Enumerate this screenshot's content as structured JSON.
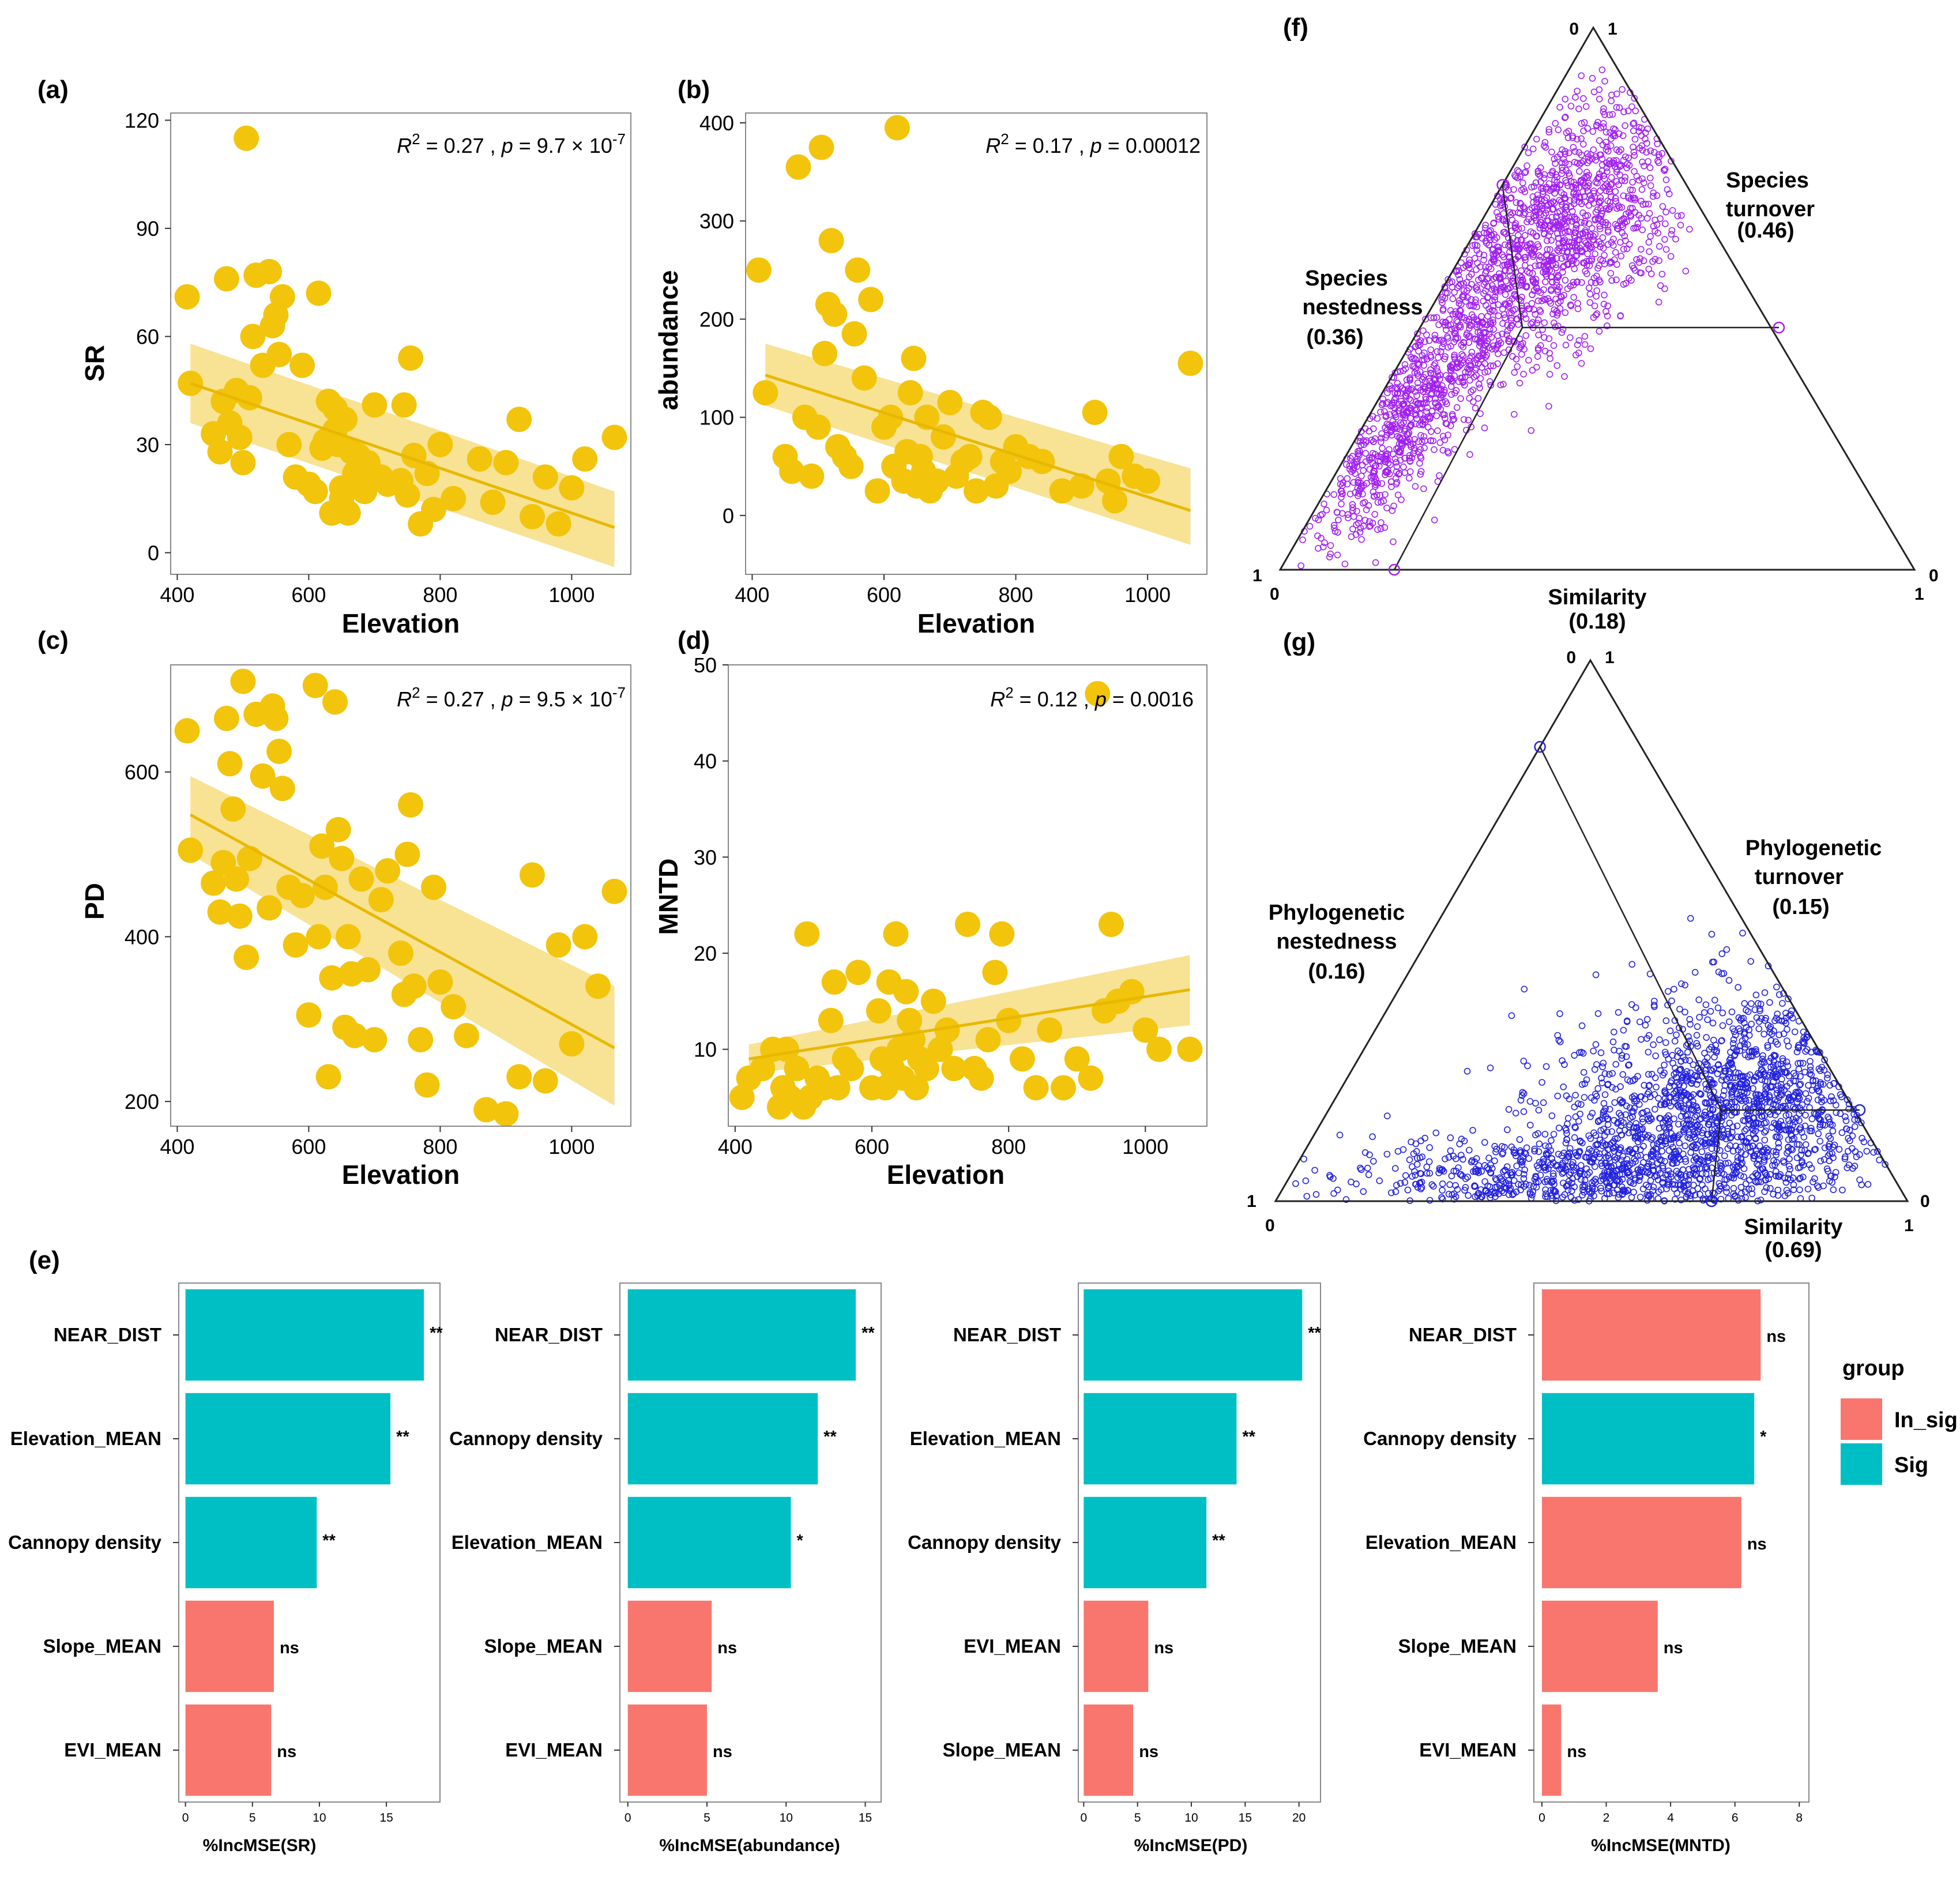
{
  "colors": {
    "point": "#F2C40C",
    "ribbon": "#F5D35A",
    "line": "#E8B800",
    "sig": "#00BFC4",
    "insig": "#F8766D",
    "species_tern": "#A020F0",
    "phylo_tern": "#2222DD"
  },
  "legend": {
    "title": "group",
    "items": [
      "In_sig",
      "Sig"
    ]
  },
  "chart_data": [
    {
      "id": "a",
      "type": "scatter",
      "label": "(a)",
      "xlabel": "Elevation",
      "ylabel": "SR",
      "xlim": [
        390,
        1090
      ],
      "ylim": [
        -6,
        122
      ],
      "xticks": [
        400,
        600,
        800,
        1000
      ],
      "yticks": [
        0,
        30,
        60,
        90,
        120
      ],
      "stat_parts": {
        "r2": "R",
        "sup": "2",
        "eq1": " = 0.27 , ",
        "p": "p",
        "eq2": " = 9.7 × 10",
        "exp": "-7"
      },
      "fit": {
        "x": [
          420,
          1065
        ],
        "y": [
          47,
          7
        ],
        "lower": [
          36,
          -4
        ],
        "upper": [
          58,
          17
        ]
      },
      "x": [
        415,
        420,
        455,
        465,
        470,
        475,
        480,
        490,
        495,
        500,
        505,
        510,
        515,
        520,
        530,
        540,
        545,
        550,
        555,
        560,
        570,
        580,
        590,
        600,
        610,
        615,
        620,
        625,
        630,
        635,
        640,
        640,
        645,
        650,
        650,
        655,
        660,
        665,
        670,
        675,
        680,
        685,
        690,
        700,
        710,
        720,
        740,
        745,
        750,
        755,
        760,
        770,
        780,
        790,
        800,
        820,
        860,
        880,
        900,
        920,
        940,
        960,
        980,
        1000,
        1020,
        1065
      ],
      "y": [
        71,
        47,
        33,
        28,
        42,
        76,
        36,
        45,
        32,
        25,
        115,
        43,
        60,
        77,
        52,
        78,
        63,
        66,
        55,
        71,
        30,
        21,
        52,
        19,
        17,
        72,
        29,
        31,
        42,
        11,
        40,
        34,
        30,
        18,
        15,
        37,
        11,
        28,
        22,
        27,
        22,
        17,
        25,
        41,
        21,
        19,
        20,
        41,
        16,
        54,
        27,
        8,
        22,
        12,
        30,
        15,
        26,
        14,
        25,
        37,
        10,
        21,
        8,
        18,
        26,
        32
      ]
    },
    {
      "id": "b",
      "type": "scatter",
      "label": "(b)",
      "xlabel": "Elevation",
      "ylabel": "abundance",
      "xlim": [
        390,
        1090
      ],
      "ylim": [
        -60,
        410
      ],
      "xticks": [
        400,
        600,
        800,
        1000
      ],
      "yticks": [
        0,
        100,
        200,
        300,
        400
      ],
      "stat_parts": {
        "r2": "R",
        "sup": "2",
        "eq1": " = 0.17 , ",
        "p": "p",
        "eq2": " = 0.00012",
        "exp": ""
      },
      "fit": {
        "x": [
          420,
          1065
        ],
        "y": [
          143,
          5
        ],
        "lower": [
          112,
          -30
        ],
        "upper": [
          175,
          48
        ]
      },
      "x": [
        410,
        420,
        450,
        460,
        470,
        480,
        490,
        500,
        505,
        510,
        515,
        520,
        525,
        530,
        540,
        550,
        555,
        560,
        570,
        580,
        590,
        600,
        610,
        615,
        620,
        630,
        635,
        640,
        645,
        650,
        655,
        660,
        665,
        670,
        680,
        690,
        700,
        710,
        720,
        730,
        740,
        750,
        760,
        770,
        780,
        790,
        800,
        820,
        840,
        870,
        900,
        920,
        940,
        950,
        960,
        980,
        1000,
        1065
      ],
      "y": [
        250,
        125,
        60,
        45,
        355,
        100,
        40,
        90,
        375,
        165,
        215,
        280,
        205,
        70,
        60,
        50,
        185,
        250,
        140,
        220,
        25,
        90,
        100,
        50,
        395,
        35,
        65,
        125,
        160,
        30,
        60,
        45,
        100,
        25,
        35,
        80,
        115,
        40,
        55,
        60,
        25,
        105,
        100,
        30,
        55,
        45,
        70,
        60,
        55,
        25,
        30,
        105,
        35,
        15,
        60,
        40,
        35,
        155
      ]
    },
    {
      "id": "c",
      "type": "scatter",
      "label": "(c)",
      "xlabel": "Elevation",
      "ylabel": "PD",
      "xlim": [
        390,
        1090
      ],
      "ylim": [
        170,
        730
      ],
      "xticks": [
        400,
        600,
        800,
        1000
      ],
      "yticks": [
        200,
        400,
        600
      ],
      "stat_parts": {
        "r2": "R",
        "sup": "2",
        "eq1": " = 0.27 , ",
        "p": "p",
        "eq2": " = 9.5 × 10",
        "exp": "-7"
      },
      "fit": {
        "x": [
          420,
          1065
        ],
        "y": [
          548,
          265
        ],
        "lower": [
          500,
          195
        ],
        "upper": [
          595,
          340
        ]
      },
      "x": [
        415,
        420,
        455,
        465,
        470,
        475,
        480,
        485,
        490,
        495,
        500,
        505,
        510,
        520,
        530,
        540,
        545,
        550,
        555,
        560,
        570,
        580,
        590,
        600,
        610,
        615,
        620,
        625,
        630,
        635,
        640,
        645,
        650,
        655,
        660,
        665,
        670,
        680,
        690,
        700,
        710,
        720,
        740,
        745,
        750,
        755,
        760,
        770,
        780,
        790,
        800,
        820,
        840,
        870,
        900,
        920,
        940,
        960,
        980,
        1000,
        1020,
        1040,
        1065
      ],
      "y": [
        650,
        505,
        465,
        430,
        490,
        665,
        610,
        555,
        470,
        425,
        710,
        375,
        495,
        670,
        595,
        435,
        680,
        665,
        625,
        580,
        460,
        390,
        450,
        305,
        705,
        400,
        510,
        460,
        230,
        350,
        685,
        530,
        495,
        290,
        400,
        355,
        280,
        470,
        360,
        275,
        445,
        480,
        380,
        330,
        500,
        560,
        340,
        275,
        220,
        460,
        345,
        315,
        280,
        190,
        185,
        230,
        475,
        225,
        390,
        270,
        400,
        340,
        455
      ]
    },
    {
      "id": "d",
      "type": "scatter",
      "label": "(d)",
      "xlabel": "Elevation",
      "ylabel": "MNTD",
      "xlim": [
        390,
        1090
      ],
      "ylim": [
        2,
        50
      ],
      "xticks": [
        400,
        600,
        800,
        1000
      ],
      "yticks": [
        10,
        20,
        30,
        40,
        50
      ],
      "stat_parts": {
        "r2": "R",
        "sup": "2",
        "eq1": " = 0.12 , ",
        "p": "p",
        "eq2": " = 0.0016",
        "exp": ""
      },
      "fit": {
        "x": [
          420,
          1065
        ],
        "y": [
          9,
          16.2
        ],
        "lower": [
          7.5,
          12.5
        ],
        "upper": [
          10.5,
          19.8
        ]
      },
      "x": [
        410,
        420,
        440,
        455,
        465,
        470,
        475,
        480,
        490,
        500,
        505,
        510,
        520,
        530,
        540,
        545,
        550,
        560,
        570,
        580,
        600,
        610,
        615,
        620,
        625,
        630,
        635,
        640,
        645,
        650,
        655,
        660,
        665,
        670,
        680,
        690,
        700,
        710,
        720,
        740,
        750,
        760,
        770,
        780,
        790,
        800,
        820,
        840,
        860,
        880,
        900,
        920,
        930,
        940,
        950,
        960,
        980,
        1000,
        1020,
        1065
      ],
      "y": [
        5,
        7,
        8,
        10,
        4,
        6,
        10,
        5,
        8,
        4,
        22,
        5,
        7,
        6,
        13,
        17,
        6,
        9,
        8,
        18,
        6,
        14,
        9,
        6,
        17,
        8,
        22,
        10,
        7,
        16,
        13,
        11,
        6,
        9,
        8,
        15,
        10,
        12,
        8,
        23,
        8,
        7,
        11,
        18,
        22,
        13,
        9,
        6,
        12,
        6,
        9,
        7,
        47,
        14,
        23,
        15,
        16,
        12,
        10,
        10
      ]
    }
  ],
  "bar_charts": [
    {
      "id": "e1",
      "label": "(e)",
      "xlabel": "%IncMSE(SR)",
      "xlim": [
        -0.5,
        19
      ],
      "xticks": [
        0,
        5,
        10,
        15
      ],
      "bars": [
        {
          "name": "NEAR_DIST",
          "value": 17.8,
          "group": "Sig",
          "sig": "**"
        },
        {
          "name": "Elevation_MEAN",
          "value": 15.3,
          "group": "Sig",
          "sig": "**"
        },
        {
          "name": "Cannopy density",
          "value": 9.8,
          "group": "Sig",
          "sig": "**"
        },
        {
          "name": "Slope_MEAN",
          "value": 6.6,
          "group": "In_sig",
          "sig": "ns"
        },
        {
          "name": "EVI_MEAN",
          "value": 6.4,
          "group": "In_sig",
          "sig": "ns"
        }
      ]
    },
    {
      "id": "e2",
      "label": "",
      "xlabel": "%IncMSE(abundance)",
      "xlim": [
        -0.5,
        16
      ],
      "xticks": [
        0,
        5,
        10,
        15
      ],
      "bars": [
        {
          "name": "NEAR_DIST",
          "value": 14.4,
          "group": "Sig",
          "sig": "**"
        },
        {
          "name": "Cannopy density",
          "value": 12.0,
          "group": "Sig",
          "sig": "**"
        },
        {
          "name": "Elevation_MEAN",
          "value": 10.3,
          "group": "Sig",
          "sig": "*"
        },
        {
          "name": "Slope_MEAN",
          "value": 5.3,
          "group": "In_sig",
          "sig": "ns"
        },
        {
          "name": "EVI_MEAN",
          "value": 5.0,
          "group": "In_sig",
          "sig": "ns"
        }
      ]
    },
    {
      "id": "e3",
      "label": "",
      "xlabel": "%IncMSE(PD)",
      "xlim": [
        -0.5,
        22
      ],
      "xticks": [
        0,
        5,
        10,
        15,
        20
      ],
      "bars": [
        {
          "name": "NEAR_DIST",
          "value": 20.3,
          "group": "Sig",
          "sig": "**"
        },
        {
          "name": "Elevation_MEAN",
          "value": 14.2,
          "group": "Sig",
          "sig": "**"
        },
        {
          "name": "Cannopy density",
          "value": 11.4,
          "group": "Sig",
          "sig": "**"
        },
        {
          "name": "EVI_MEAN",
          "value": 6.0,
          "group": "In_sig",
          "sig": "ns"
        },
        {
          "name": "Slope_MEAN",
          "value": 4.6,
          "group": "In_sig",
          "sig": "ns"
        }
      ]
    },
    {
      "id": "e4",
      "label": "",
      "xlabel": "%IncMSE(MNTD)",
      "xlim": [
        -0.25,
        8.3
      ],
      "xticks": [
        0,
        2,
        4,
        6,
        8
      ],
      "bars": [
        {
          "name": "NEAR_DIST",
          "value": 6.8,
          "group": "In_sig",
          "sig": "ns"
        },
        {
          "name": "Cannopy density",
          "value": 6.6,
          "group": "Sig",
          "sig": "*"
        },
        {
          "name": "Elevation_MEAN",
          "value": 6.2,
          "group": "In_sig",
          "sig": "ns"
        },
        {
          "name": "Slope_MEAN",
          "value": 3.6,
          "group": "In_sig",
          "sig": "ns"
        },
        {
          "name": "EVI_MEAN",
          "value": 0.6,
          "group": "In_sig",
          "sig": "ns"
        }
      ]
    }
  ],
  "ternary": [
    {
      "id": "f",
      "label": "(f)",
      "corner_ticks": {
        "top_left": "0",
        "top_right": "1",
        "left_top": "1",
        "left_bottom": "0",
        "right_top": "0",
        "right_bottom": "1"
      },
      "nestedness": {
        "line1": "Species",
        "line2": "nestedness",
        "value": "(0.36)"
      },
      "turnover": {
        "line1": "Species",
        "line2": "turnover",
        "value": "(0.46)"
      },
      "similarity": {
        "line1": "Similarity",
        "value": "(0.18)"
      },
      "mean_point": {
        "similarity": 0.18,
        "turnover": 0.46,
        "nestedness": 0.36
      }
    },
    {
      "id": "g",
      "label": "(g)",
      "corner_ticks": {
        "top_left": "0",
        "top_right": "1",
        "left_top": "1",
        "left_bottom": "0",
        "right_top": "0",
        "right_bottom": "1"
      },
      "nestedness": {
        "line1": "Phylogenetic",
        "line2": "nestedness",
        "value": "(0.16)"
      },
      "turnover": {
        "line1": "Phylogenetic",
        "line2": "turnover",
        "value": "(0.15)"
      },
      "similarity": {
        "line1": "Similarity",
        "value": "(0.69)"
      },
      "mean_point": {
        "similarity": 0.69,
        "turnover": 0.15,
        "nestedness": 0.16
      }
    }
  ]
}
